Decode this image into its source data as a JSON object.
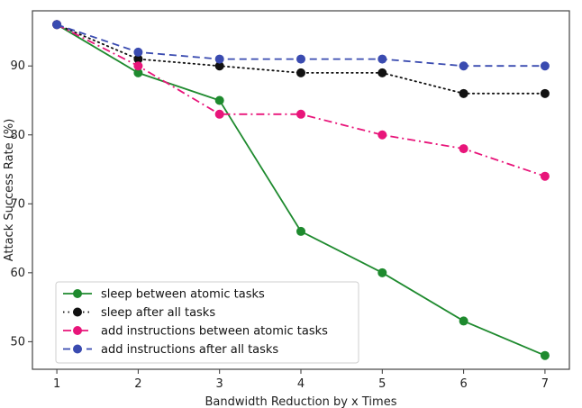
{
  "chart_data": {
    "type": "line",
    "xlabel": "Bandwidth Reduction by x Times",
    "ylabel": "Attack Success Rate (%)",
    "x": [
      1,
      2,
      3,
      4,
      5,
      6,
      7
    ],
    "xlim": [
      0.7,
      7.3
    ],
    "ylim": [
      46,
      98
    ],
    "xticks": [
      "1",
      "2",
      "3",
      "4",
      "5",
      "6",
      "7"
    ],
    "yticks": [
      50,
      60,
      70,
      80,
      90
    ],
    "grid": false,
    "legend_position": "lower-left",
    "series": [
      {
        "name": "sleep between atomic tasks",
        "values": [
          96,
          89,
          85,
          66,
          60,
          53,
          48
        ],
        "color": "#1e8a2e",
        "dash": "solid"
      },
      {
        "name": "sleep after all tasks",
        "values": [
          96,
          91,
          90,
          89,
          89,
          86,
          86
        ],
        "color": "#111111",
        "dash": "dotted"
      },
      {
        "name": "add instructions between atomic tasks",
        "values": [
          96,
          90,
          83,
          83,
          80,
          78,
          74
        ],
        "color": "#e8157a",
        "dash": "dashdot"
      },
      {
        "name": "add instructions after all tasks",
        "values": [
          96,
          92,
          91,
          91,
          91,
          90,
          90
        ],
        "color": "#3a4bb0",
        "dash": "dashed"
      }
    ]
  }
}
